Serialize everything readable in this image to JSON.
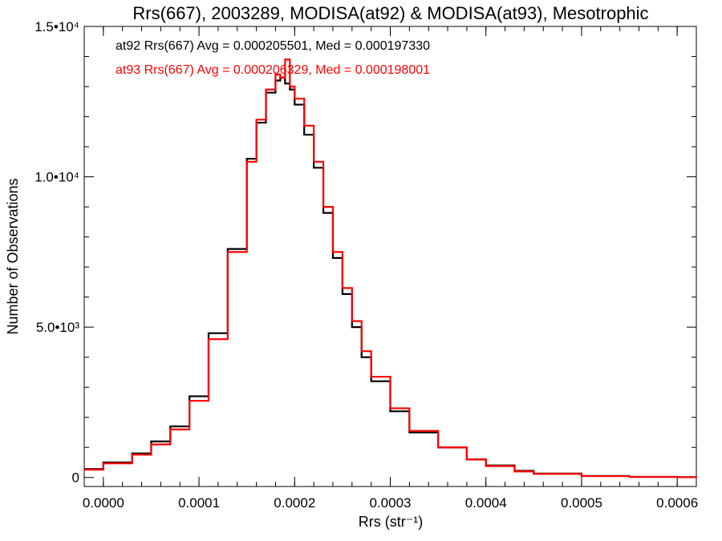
{
  "chart_data": {
    "type": "line",
    "title": "Rrs(667), 2003289, MODISA(at92) & MODISA(at93), Mesotrophic",
    "xlabel": "Rrs (str⁻¹)",
    "ylabel": "Number of Observations",
    "xlim": [
      -2e-05,
      0.00062
    ],
    "ylim": [
      -300,
      15000
    ],
    "x_ticks": [
      {
        "value": 0.0,
        "label": "0.0000"
      },
      {
        "value": 0.0001,
        "label": "0.0001"
      },
      {
        "value": 0.0002,
        "label": "0.0002"
      },
      {
        "value": 0.0003,
        "label": "0.0003"
      },
      {
        "value": 0.0004,
        "label": "0.0004"
      },
      {
        "value": 0.0005,
        "label": "0.0005"
      },
      {
        "value": 0.0006,
        "label": "0.0006"
      }
    ],
    "y_ticks": [
      {
        "value": 0,
        "label": "0"
      },
      {
        "value": 5000,
        "label": "5.0•10³"
      },
      {
        "value": 10000,
        "label": "1.0•10⁴"
      },
      {
        "value": 15000,
        "label": "1.5•10⁴"
      }
    ],
    "grid": false,
    "legend": "top-left",
    "series": [
      {
        "name": "at92",
        "stats_text": "at92 Rrs(667) Avg = 0.000205501, Med = 0.000197330",
        "color": "#000000",
        "x": [
          -2e-05,
          0.0,
          3e-05,
          5e-05,
          7e-05,
          9e-05,
          0.00011,
          0.00013,
          0.00015,
          0.00016,
          0.00017,
          0.00018,
          0.000185,
          0.00019,
          0.000195,
          0.0002,
          0.00021,
          0.00022,
          0.00023,
          0.00024,
          0.00025,
          0.00026,
          0.00027,
          0.00028,
          0.0003,
          0.00032,
          0.00035,
          0.00038,
          0.0004,
          0.00043,
          0.00045,
          0.0005,
          0.00055,
          0.0006,
          0.00062
        ],
        "y": [
          280,
          500,
          800,
          1200,
          1700,
          2700,
          4800,
          7600,
          10600,
          11800,
          12800,
          13200,
          13300,
          13100,
          12900,
          12400,
          11400,
          10300,
          8800,
          7300,
          6100,
          5000,
          4000,
          3200,
          2200,
          1500,
          1000,
          600,
          400,
          220,
          130,
          50,
          20,
          10,
          5
        ]
      },
      {
        "name": "at93",
        "stats_text": "at93 Rrs(667) Avg = 0.000206329, Med = 0.000198001",
        "color": "#ff0000",
        "x": [
          -2e-05,
          0.0,
          3e-05,
          5e-05,
          7e-05,
          9e-05,
          0.00011,
          0.00013,
          0.00015,
          0.00016,
          0.00017,
          0.00018,
          0.000185,
          0.00019,
          0.000195,
          0.0002,
          0.00021,
          0.00022,
          0.00023,
          0.00024,
          0.00025,
          0.00026,
          0.00027,
          0.00028,
          0.0003,
          0.00032,
          0.00035,
          0.00038,
          0.0004,
          0.00043,
          0.00045,
          0.0005,
          0.00055,
          0.0006,
          0.00062
        ],
        "y": [
          260,
          470,
          760,
          1100,
          1600,
          2550,
          4600,
          7500,
          10500,
          11900,
          12900,
          13400,
          13300,
          13900,
          13000,
          12600,
          11700,
          10500,
          9000,
          7500,
          6300,
          5200,
          4200,
          3350,
          2300,
          1550,
          1000,
          600,
          380,
          200,
          120,
          45,
          18,
          8,
          4
        ]
      }
    ]
  }
}
